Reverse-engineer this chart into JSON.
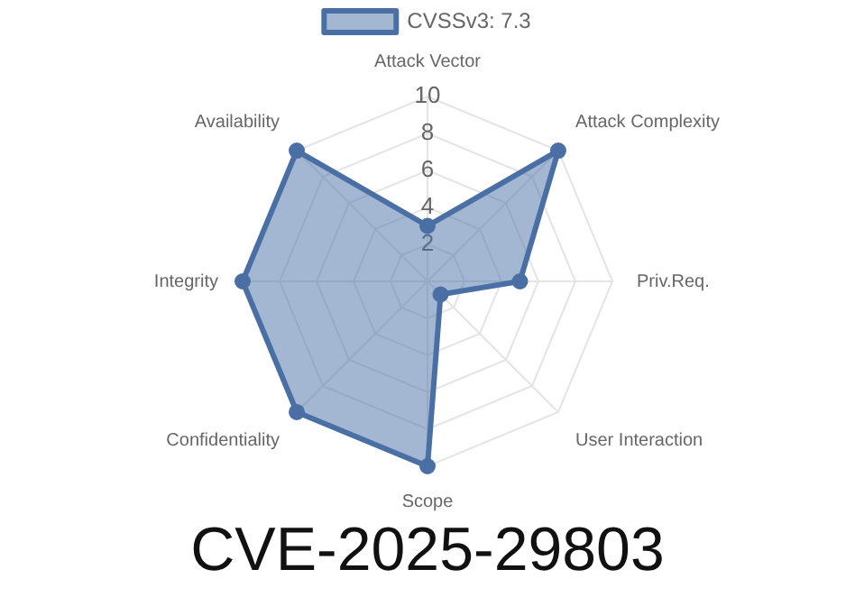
{
  "chart_data": {
    "type": "radar",
    "title": "CVE-2025-29803",
    "categories": [
      "Attack Vector",
      "Attack Complexity",
      "Priv.Req.",
      "User Interaction",
      "Scope",
      "Confidentiality",
      "Integrity",
      "Availability"
    ],
    "series": [
      {
        "name": "CVSSv3: 7.3",
        "color": "#4a6fa5",
        "values": [
          3,
          10,
          5,
          1,
          10,
          10,
          10,
          10
        ]
      }
    ],
    "ylim": [
      0,
      10
    ],
    "yticks": [
      2,
      4,
      6,
      8,
      10
    ],
    "grid": true,
    "legend": "top",
    "marker": "circle"
  }
}
